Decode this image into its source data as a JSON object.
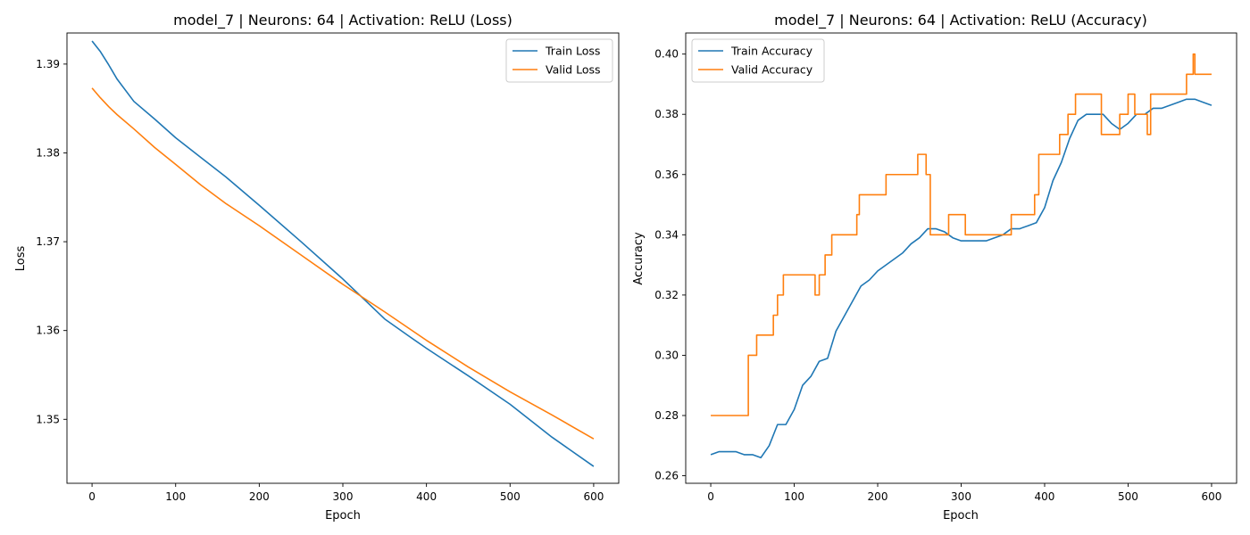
{
  "chart_data": [
    {
      "type": "line",
      "title": "model_7 | Neurons: 64 | Activation: ReLU (Loss)",
      "xlabel": "Epoch",
      "ylabel": "Loss",
      "xlim": [
        -30,
        630
      ],
      "ylim": [
        1.3428,
        1.3935
      ],
      "xticks": [
        0,
        100,
        200,
        300,
        400,
        500,
        600
      ],
      "yticks": [
        1.35,
        1.36,
        1.37,
        1.38,
        1.39
      ],
      "ytick_decimals": 2,
      "grid": false,
      "legend_position": "top-right",
      "series": [
        {
          "name": "Train Loss",
          "color": "#1f77b4",
          "x": [
            0,
            10,
            20,
            30,
            50,
            75,
            100,
            130,
            160,
            200,
            250,
            300,
            350,
            380,
            400,
            450,
            500,
            550,
            600
          ],
          "values": [
            1.3926,
            1.3914,
            1.3899,
            1.3883,
            1.3858,
            1.3838,
            1.3817,
            1.3795,
            1.3773,
            1.3741,
            1.37,
            1.3658,
            1.3613,
            1.3593,
            1.358,
            1.3549,
            1.3517,
            1.348,
            1.3447
          ]
        },
        {
          "name": "Valid Loss",
          "color": "#ff7f0e",
          "x": [
            0,
            10,
            20,
            30,
            50,
            75,
            100,
            130,
            160,
            200,
            250,
            300,
            350,
            400,
            450,
            500,
            550,
            600
          ],
          "values": [
            1.3873,
            1.3862,
            1.3852,
            1.3843,
            1.3827,
            1.3806,
            1.3787,
            1.3764,
            1.3743,
            1.3718,
            1.3685,
            1.3652,
            1.3621,
            1.3589,
            1.3559,
            1.3531,
            1.3505,
            1.3478
          ]
        }
      ]
    },
    {
      "type": "line",
      "title": "model_7 | Neurons: 64 | Activation: ReLU (Accuracy)",
      "xlabel": "Epoch",
      "ylabel": "Accuracy",
      "xlim": [
        -30,
        630
      ],
      "ylim": [
        0.2575,
        0.407
      ],
      "xticks": [
        0,
        100,
        200,
        300,
        400,
        500,
        600
      ],
      "yticks": [
        0.26,
        0.28,
        0.3,
        0.32,
        0.34,
        0.36,
        0.38,
        0.4
      ],
      "ytick_decimals": 2,
      "grid": false,
      "legend_position": "top-left",
      "series": [
        {
          "name": "Train Accuracy",
          "color": "#1f77b4",
          "x": [
            0,
            10,
            20,
            30,
            40,
            50,
            60,
            70,
            80,
            90,
            100,
            110,
            120,
            130,
            140,
            150,
            160,
            170,
            180,
            190,
            200,
            210,
            220,
            230,
            240,
            250,
            260,
            270,
            280,
            290,
            300,
            310,
            320,
            330,
            340,
            350,
            360,
            370,
            380,
            390,
            400,
            410,
            420,
            430,
            440,
            450,
            460,
            470,
            480,
            490,
            500,
            510,
            520,
            530,
            540,
            550,
            560,
            570,
            580,
            590,
            600
          ],
          "values": [
            0.267,
            0.268,
            0.268,
            0.268,
            0.267,
            0.267,
            0.266,
            0.27,
            0.277,
            0.277,
            0.282,
            0.29,
            0.293,
            0.298,
            0.299,
            0.308,
            0.313,
            0.318,
            0.323,
            0.325,
            0.328,
            0.33,
            0.332,
            0.334,
            0.337,
            0.339,
            0.342,
            0.342,
            0.341,
            0.339,
            0.338,
            0.338,
            0.338,
            0.338,
            0.339,
            0.34,
            0.342,
            0.342,
            0.343,
            0.344,
            0.349,
            0.358,
            0.364,
            0.372,
            0.378,
            0.38,
            0.38,
            0.38,
            0.377,
            0.375,
            0.377,
            0.38,
            0.38,
            0.382,
            0.382,
            0.383,
            0.384,
            0.385,
            0.385,
            0.384,
            0.383
          ]
        },
        {
          "name": "Valid Accuracy",
          "color": "#ff7f0e",
          "x": [
            0,
            45,
            45,
            50,
            50,
            55,
            55,
            75,
            75,
            80,
            80,
            87,
            87,
            120,
            120,
            125,
            125,
            130,
            130,
            137,
            137,
            145,
            145,
            175,
            175,
            178,
            178,
            210,
            210,
            233,
            233,
            248,
            248,
            258,
            258,
            263,
            263,
            285,
            285,
            305,
            305,
            360,
            360,
            388,
            388,
            393,
            393,
            418,
            418,
            428,
            428,
            437,
            437,
            468,
            468,
            490,
            490,
            500,
            500,
            508,
            508,
            523,
            523,
            527,
            527,
            570,
            570,
            578,
            578,
            580,
            580,
            582,
            582,
            600
          ],
          "values": [
            0.28,
            0.28,
            0.3,
            0.3,
            0.3,
            0.3,
            0.3067,
            0.3067,
            0.3133,
            0.3133,
            0.32,
            0.32,
            0.3267,
            0.3267,
            0.3267,
            0.3267,
            0.32,
            0.32,
            0.3267,
            0.3267,
            0.3333,
            0.3333,
            0.34,
            0.34,
            0.3467,
            0.3467,
            0.3533,
            0.3533,
            0.36,
            0.36,
            0.36,
            0.36,
            0.3667,
            0.3667,
            0.36,
            0.36,
            0.34,
            0.34,
            0.3467,
            0.3467,
            0.34,
            0.34,
            0.3467,
            0.3467,
            0.3533,
            0.3533,
            0.3667,
            0.3667,
            0.3733,
            0.3733,
            0.38,
            0.38,
            0.3867,
            0.3867,
            0.3733,
            0.3733,
            0.38,
            0.38,
            0.3867,
            0.3867,
            0.38,
            0.38,
            0.3733,
            0.3733,
            0.3867,
            0.3867,
            0.3933,
            0.3933,
            0.4,
            0.4,
            0.3933,
            0.3933,
            0.3933,
            0.3933
          ]
        }
      ]
    }
  ]
}
